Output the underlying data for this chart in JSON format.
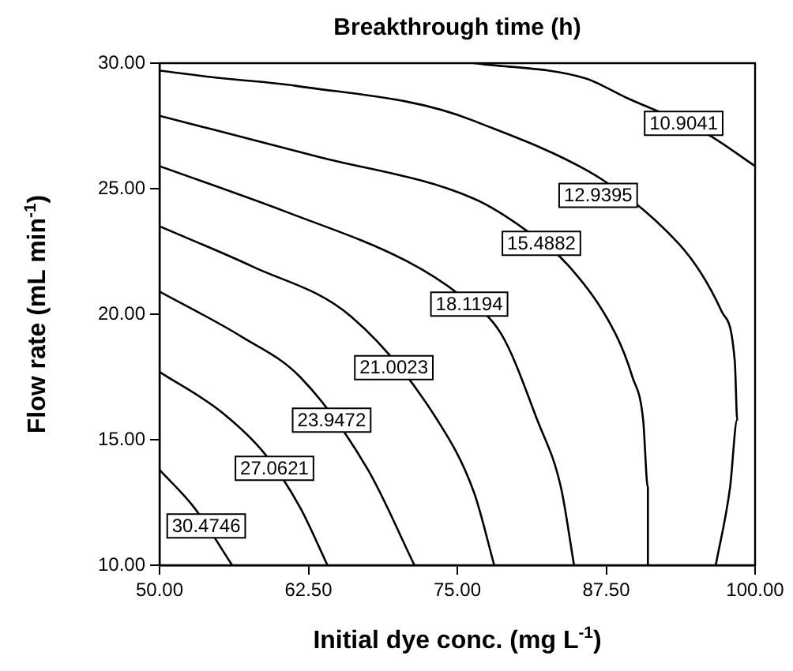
{
  "chart_data": {
    "type": "line",
    "title": "Breakthrough time (h)",
    "xlabel": "Initial dye conc. (mg L$^{-1}$)",
    "ylabel": "Flow rate (mL min$^{-1}$)",
    "xlim": [
      50,
      100
    ],
    "xticks": [
      {
        "value": 50,
        "label": "50.00"
      },
      {
        "value": 62.5,
        "label": "62.50"
      },
      {
        "value": 75,
        "label": "75.00"
      },
      {
        "value": 87.5,
        "label": "87.50"
      },
      {
        "value": 100,
        "label": "100.00"
      }
    ],
    "ylim": [
      10,
      30
    ],
    "yticks": [
      {
        "value": 10,
        "label": "10.00"
      },
      {
        "value": 15,
        "label": "15.00"
      },
      {
        "value": 20,
        "label": "20.00"
      },
      {
        "value": 25,
        "label": "25.00"
      },
      {
        "value": 30,
        "label": "30.00"
      }
    ],
    "line_style": "solid",
    "series": [
      {
        "name": "10.9041",
        "color": "#000000",
        "x": [
          76.4,
          85.7,
          89.3,
          95.9,
          100
        ],
        "values": [
          30,
          29.4,
          28.6,
          27.2,
          25.9
        ]
      },
      {
        "name": "12.9395",
        "color": "#000000",
        "x": [
          50,
          55.2,
          61.4,
          76.4,
          93.6,
          97.2,
          98.3,
          98.5,
          97.9,
          96.7
        ],
        "values": [
          29.7,
          29.4,
          29.1,
          27.7,
          22.8,
          20.1,
          18.1,
          15.8,
          13.1,
          10
        ]
      },
      {
        "name": "15.4882",
        "color": "#000000",
        "x": [
          50,
          63.1,
          76.4,
          80.6,
          84.4,
          88.3,
          89.7,
          90.6,
          91,
          91
        ],
        "values": [
          27.9,
          26.3,
          24.6,
          23.4,
          21.9,
          19.2,
          17.5,
          15.8,
          13.1,
          10
        ]
      },
      {
        "name": "18.1194",
        "color": "#000000",
        "x": [
          50,
          60.5,
          70.8,
          75.1,
          78.7,
          81.7,
          83.7,
          84.8
        ],
        "values": [
          25.9,
          24.1,
          22.1,
          20.8,
          19.2,
          15.8,
          13.1,
          10
        ]
      },
      {
        "name": "21.0023",
        "color": "#000000",
        "x": [
          50,
          57.8,
          66.1,
          73.3,
          76.4,
          78.1
        ],
        "values": [
          23.5,
          21.9,
          19.9,
          15.8,
          12.9,
          10
        ]
      },
      {
        "name": "23.9472",
        "color": "#000000",
        "x": [
          50,
          56.9,
          61.8,
          67.5,
          71.4
        ],
        "values": [
          20.9,
          19.1,
          17.5,
          13.8,
          10
        ]
      },
      {
        "name": "27.0621",
        "color": "#000000",
        "x": [
          50,
          55.2,
          58.9,
          61.8,
          64.1
        ],
        "values": [
          17.7,
          16.1,
          14.4,
          12.3,
          10
        ]
      },
      {
        "name": "30.4746",
        "color": "#000000",
        "x": [
          50,
          52.9,
          56.1
        ],
        "values": [
          13.8,
          12.3,
          10
        ]
      }
    ]
  }
}
